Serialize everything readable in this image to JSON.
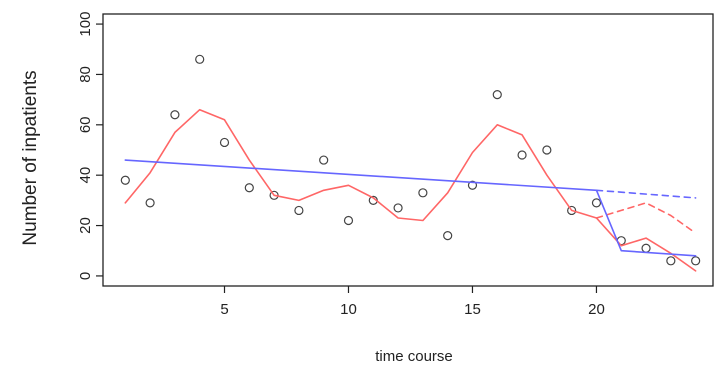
{
  "chart_data": {
    "type": "scatter",
    "xlabel": "time course",
    "ylabel": "Number of inpatients",
    "xlim": [
      0.1,
      24.7
    ],
    "ylim": [
      -4,
      104
    ],
    "xticks": [
      5,
      10,
      15,
      20
    ],
    "yticks": [
      0,
      20,
      40,
      60,
      80,
      100
    ],
    "grid": false,
    "series": [
      {
        "kind": "points",
        "color": "#444444",
        "x": [
          1,
          2,
          3,
          4,
          5,
          6,
          7,
          8,
          9,
          10,
          11,
          12,
          13,
          14,
          15,
          16,
          17,
          18,
          19,
          20,
          21,
          22,
          23,
          24
        ],
        "y": [
          38,
          29,
          64,
          86,
          53,
          35,
          32,
          26,
          46,
          22,
          30,
          27,
          33,
          16,
          36,
          72,
          48,
          50,
          26,
          29,
          14,
          11,
          6,
          6
        ]
      },
      {
        "kind": "line",
        "style": "solid",
        "color": "#ff6666",
        "x": [
          1,
          2,
          3,
          4,
          5,
          6,
          7,
          8,
          9,
          10,
          11,
          12,
          13,
          14,
          15,
          16,
          17,
          18,
          19,
          20,
          21,
          22,
          23,
          24
        ],
        "y": [
          29,
          41,
          57,
          66,
          62,
          46,
          32,
          30,
          34,
          36,
          31,
          23,
          22,
          33,
          49,
          60,
          56,
          40,
          26,
          23,
          12,
          15,
          9,
          2
        ]
      },
      {
        "kind": "line",
        "style": "dashed",
        "color": "#ff6666",
        "x": [
          20,
          21,
          22,
          23,
          24
        ],
        "y": [
          23,
          26,
          29,
          24,
          17
        ]
      },
      {
        "kind": "line",
        "style": "solid",
        "color": "#6666ff",
        "x": [
          1,
          20,
          21,
          24
        ],
        "y": [
          46,
          34,
          10,
          8
        ]
      },
      {
        "kind": "line",
        "style": "dashed",
        "color": "#6666ff",
        "x": [
          20,
          24
        ],
        "y": [
          34,
          31
        ]
      }
    ]
  }
}
